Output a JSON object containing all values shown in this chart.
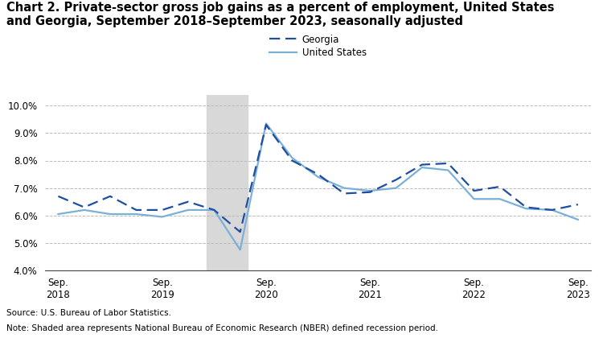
{
  "title_line1": "Chart 2. Private-sector gross job gains as a percent of employment, United States",
  "title_line2": "and Georgia, September 2018–September 2023, seasonally adjusted",
  "title_fontsize": 10.5,
  "source_text": "Source: U.S. Bureau of Labor Statistics.",
  "note_text": "Note: Shaded area represents National Bureau of Economic Research (NBER) defined recession period.",
  "legend_labels": [
    "Georgia",
    "United States"
  ],
  "recession_start": 5.7,
  "recession_end": 7.3,
  "ylim": [
    4.0,
    10.4
  ],
  "yticks": [
    4.0,
    5.0,
    6.0,
    7.0,
    8.0,
    9.0,
    10.0
  ],
  "georgia_color": "#1f4e9e",
  "us_color": "#7ab0d8",
  "georgia_data": [
    6.7,
    6.3,
    6.7,
    6.2,
    6.2,
    6.5,
    6.2,
    5.4,
    9.3,
    8.0,
    7.5,
    6.8,
    6.85,
    7.3,
    7.85,
    7.9,
    6.9,
    7.05,
    6.3,
    6.2,
    6.4
  ],
  "us_data": [
    6.05,
    6.2,
    6.05,
    6.05,
    5.95,
    6.2,
    6.2,
    4.75,
    9.35,
    8.1,
    7.4,
    7.0,
    6.9,
    7.0,
    7.75,
    7.65,
    6.6,
    6.6,
    6.25,
    6.2,
    5.85
  ],
  "n_points": 21,
  "xtick_positions": [
    0,
    4,
    8,
    12,
    16,
    20
  ],
  "xtick_labels": [
    "Sep.\n2018",
    "Sep.\n2019",
    "Sep.\n2020",
    "Sep.\n2021",
    "Sep.\n2022",
    "Sep.\n2023"
  ],
  "background_color": "#ffffff",
  "grid_color": "#bbbbbb",
  "recession_color": "#d8d8d8"
}
